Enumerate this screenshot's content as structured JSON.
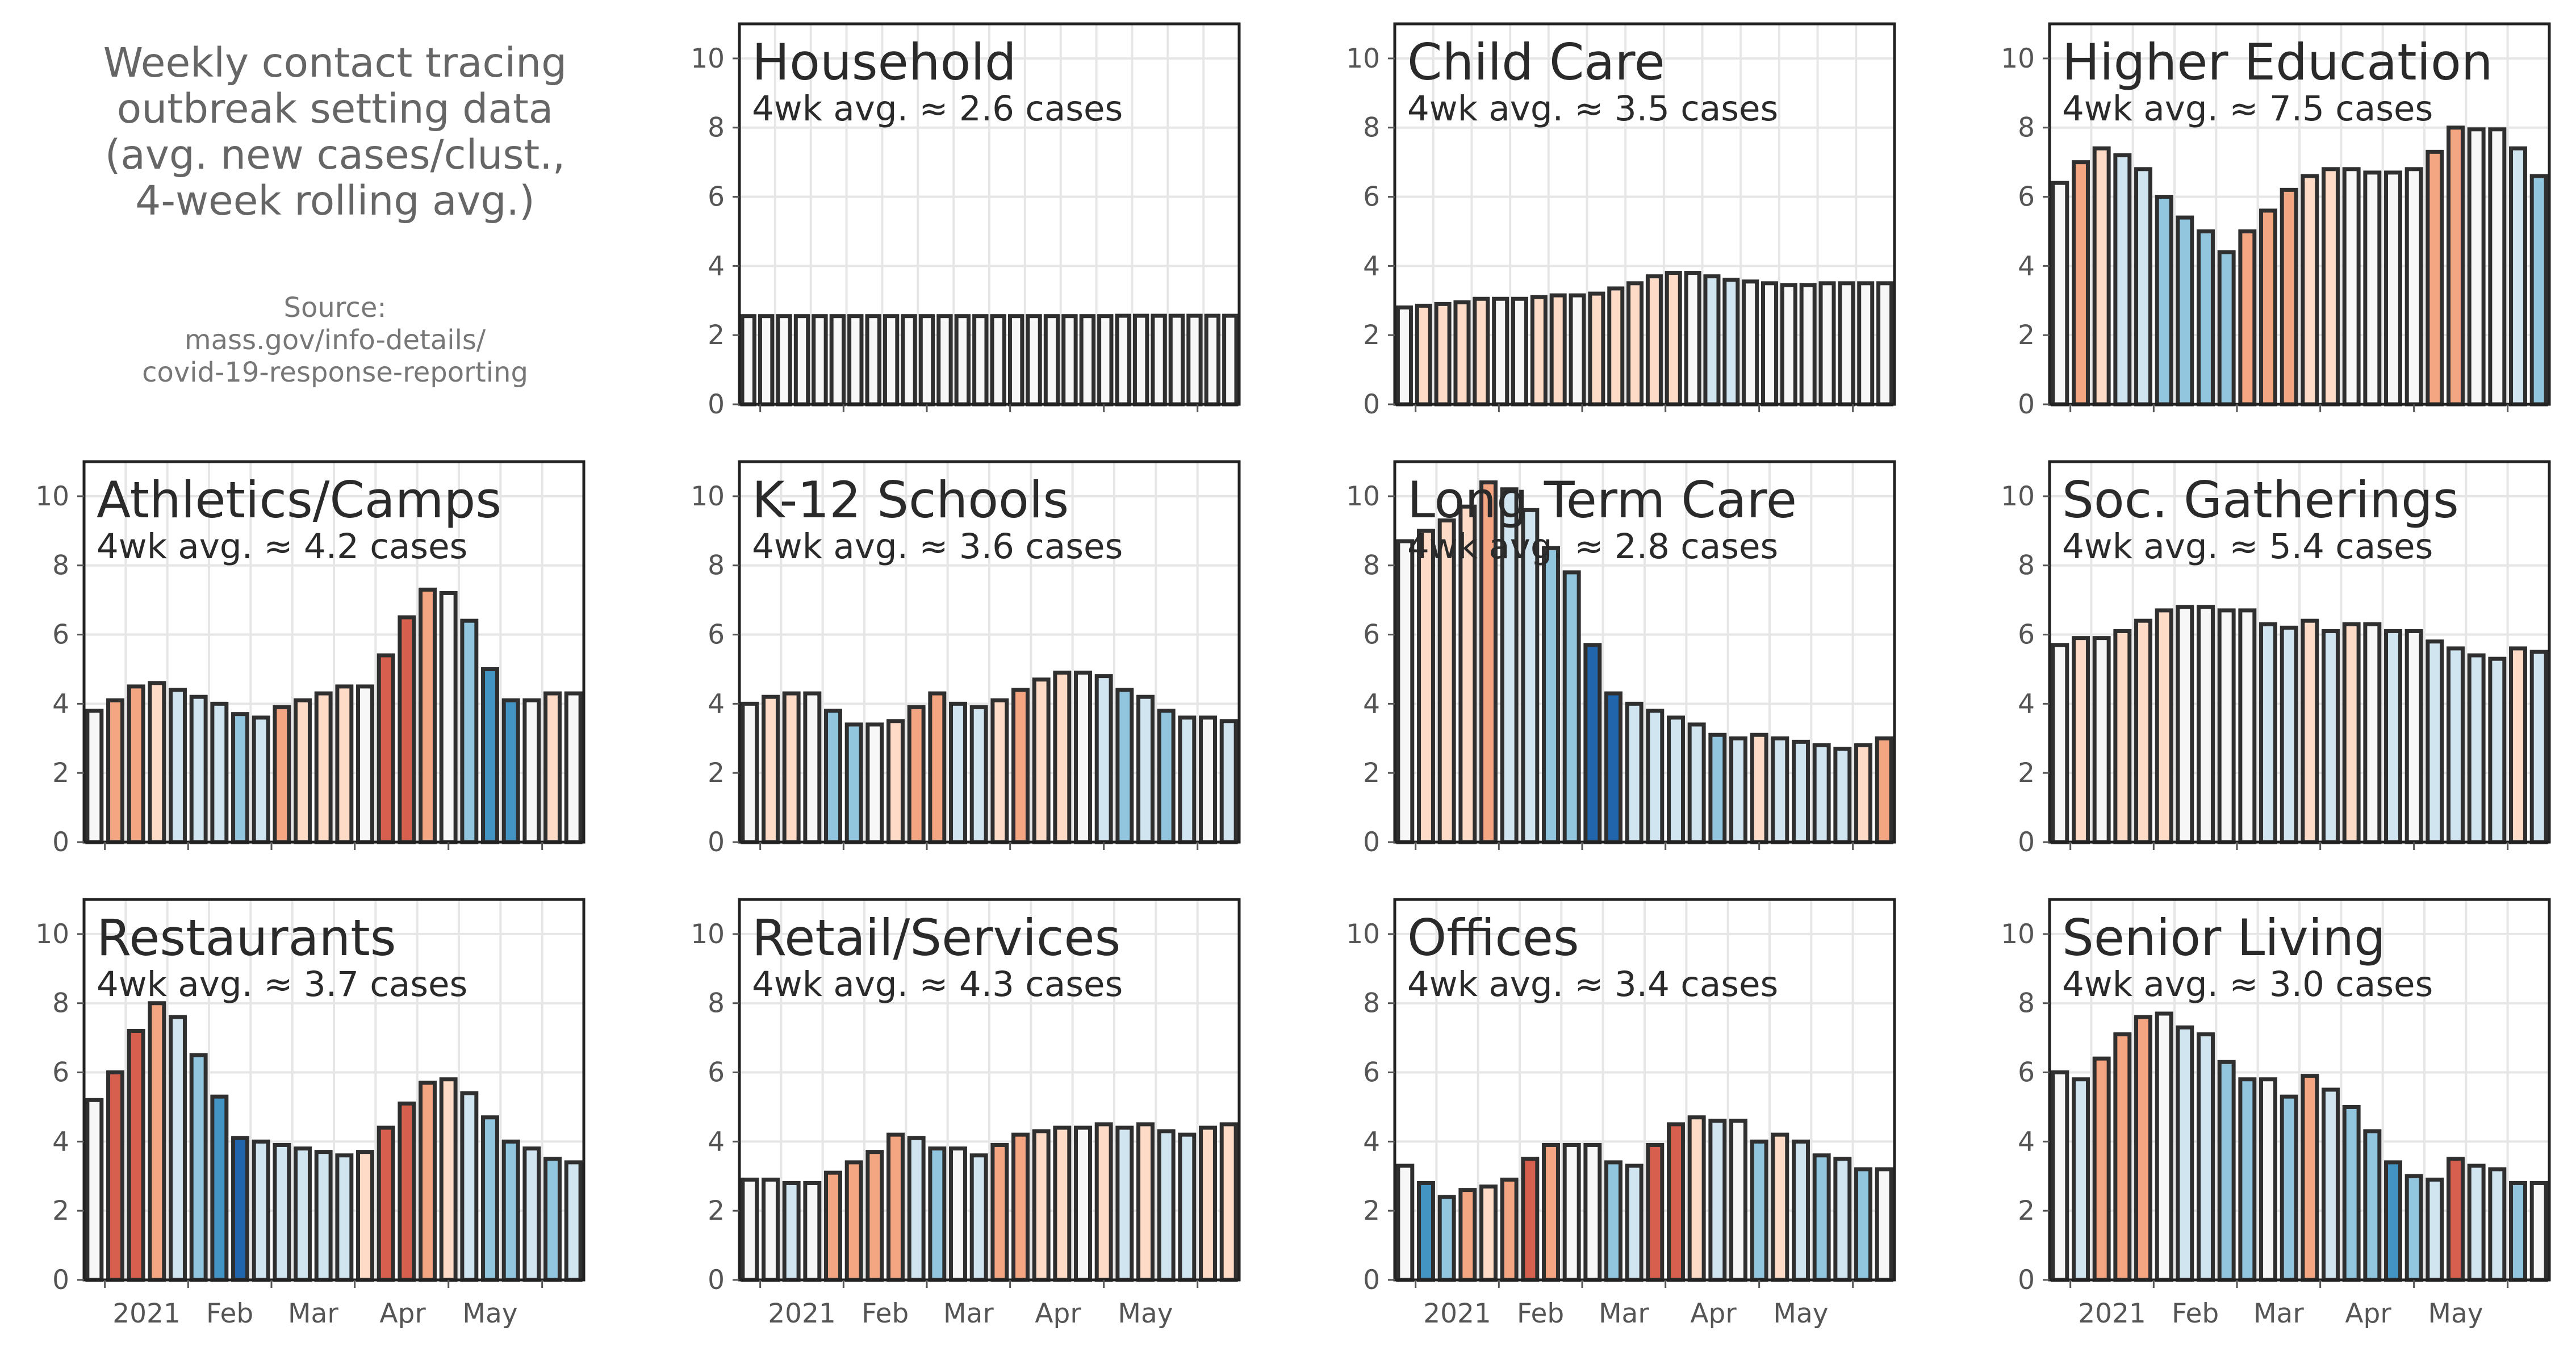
{
  "header": {
    "title": "Weekly contact tracing\noutbreak setting data\n(avg. new cases/clust.,\n4-week rolling avg.)",
    "source": "Source:\nmass.gov/info-details/\ncovid-19-response-reporting"
  },
  "colors": {
    "frame": "#222222",
    "grid": "#e6e6e6",
    "bar_edge": "#2f2f2f",
    "scale_up_strong": "#d6604d",
    "scale_up_mid": "#f4a582",
    "scale_up_light": "#fddbc7",
    "scale_neutral": "#f7f7f7",
    "scale_down_light": "#d1e5f0",
    "scale_down_mid": "#92c5de",
    "scale_down_strong": "#4393c3",
    "scale_down_darkest": "#2166ac"
  },
  "chart_data": [
    {
      "type": "bar",
      "title": "Household",
      "subtitle": "4wk avg. ≈ 2.6 cases",
      "ylim": [
        0,
        11
      ],
      "yticks": [
        0,
        2,
        4,
        6,
        8,
        10
      ],
      "x_tick_labels": [],
      "grid": true,
      "values": [
        2.55,
        2.55,
        2.55,
        2.55,
        2.55,
        2.55,
        2.55,
        2.55,
        2.55,
        2.55,
        2.55,
        2.55,
        2.55,
        2.55,
        2.55,
        2.55,
        2.55,
        2.55,
        2.55,
        2.55,
        2.55,
        2.56,
        2.56,
        2.56,
        2.56,
        2.56,
        2.56,
        2.56
      ]
    },
    {
      "type": "bar",
      "title": "Child Care",
      "subtitle": "4wk avg. ≈ 3.5 cases",
      "ylim": [
        0,
        11
      ],
      "yticks": [
        0,
        2,
        4,
        6,
        8,
        10
      ],
      "x_tick_labels": [],
      "grid": true,
      "values": [
        2.8,
        2.85,
        2.9,
        2.95,
        3.05,
        3.05,
        3.05,
        3.1,
        3.15,
        3.15,
        3.2,
        3.35,
        3.5,
        3.7,
        3.8,
        3.8,
        3.7,
        3.6,
        3.55,
        3.5,
        3.45,
        3.45,
        3.5,
        3.5,
        3.5,
        3.5
      ]
    },
    {
      "type": "bar",
      "title": "Higher Education",
      "subtitle": "4wk avg. ≈ 7.5 cases",
      "ylim": [
        0,
        11
      ],
      "yticks": [
        0,
        2,
        4,
        6,
        8,
        10
      ],
      "x_tick_labels": [],
      "grid": true,
      "values": [
        6.4,
        7.0,
        7.4,
        7.2,
        6.8,
        6.0,
        5.4,
        5.0,
        4.4,
        5.0,
        5.6,
        6.2,
        6.6,
        6.8,
        6.8,
        6.7,
        6.7,
        6.8,
        7.3,
        8.0,
        7.95,
        7.95,
        7.4,
        6.6
      ]
    },
    {
      "type": "bar",
      "title": "Athletics/Camps",
      "subtitle": "4wk avg. ≈ 4.2 cases",
      "ylim": [
        0,
        11
      ],
      "yticks": [
        0,
        2,
        4,
        6,
        8,
        10
      ],
      "x_tick_labels": [],
      "grid": true,
      "values": [
        3.8,
        4.1,
        4.5,
        4.6,
        4.4,
        4.2,
        4.0,
        3.7,
        3.6,
        3.9,
        4.1,
        4.3,
        4.5,
        4.5,
        5.4,
        6.5,
        7.3,
        7.2,
        6.4,
        5.0,
        4.1,
        4.1,
        4.3,
        4.3
      ]
    },
    {
      "type": "bar",
      "title": "K-12 Schools",
      "subtitle": "4wk avg. ≈ 3.6 cases",
      "ylim": [
        0,
        11
      ],
      "yticks": [
        0,
        2,
        4,
        6,
        8,
        10
      ],
      "x_tick_labels": [],
      "grid": true,
      "values": [
        4.0,
        4.2,
        4.3,
        4.3,
        3.8,
        3.4,
        3.4,
        3.5,
        3.9,
        4.3,
        4.0,
        3.9,
        4.1,
        4.4,
        4.7,
        4.9,
        4.9,
        4.8,
        4.4,
        4.2,
        3.8,
        3.6,
        3.6,
        3.5
      ]
    },
    {
      "type": "bar",
      "title": "Long Term Care",
      "subtitle": "4wk avg. ≈ 2.8 cases",
      "ylim": [
        0,
        11
      ],
      "yticks": [
        0,
        2,
        4,
        6,
        8,
        10
      ],
      "x_tick_labels": [],
      "grid": true,
      "values": [
        8.7,
        9.0,
        9.3,
        9.7,
        10.4,
        10.2,
        9.6,
        8.5,
        7.8,
        5.7,
        4.3,
        4.0,
        3.8,
        3.6,
        3.4,
        3.1,
        3.0,
        3.1,
        3.0,
        2.9,
        2.8,
        2.7,
        2.8,
        3.0
      ]
    },
    {
      "type": "bar",
      "title": "Soc. Gatherings",
      "subtitle": "4wk avg. ≈ 5.4 cases",
      "ylim": [
        0,
        11
      ],
      "yticks": [
        0,
        2,
        4,
        6,
        8,
        10
      ],
      "x_tick_labels": [],
      "grid": true,
      "values": [
        5.7,
        5.9,
        5.9,
        6.1,
        6.4,
        6.7,
        6.8,
        6.8,
        6.7,
        6.7,
        6.3,
        6.2,
        6.4,
        6.1,
        6.3,
        6.3,
        6.1,
        6.1,
        5.8,
        5.6,
        5.4,
        5.3,
        5.6,
        5.5
      ]
    },
    {
      "type": "bar",
      "title": "Restaurants",
      "subtitle": "4wk avg. ≈ 3.7 cases",
      "ylim": [
        0,
        11
      ],
      "yticks": [
        0,
        2,
        4,
        6,
        8,
        10
      ],
      "x_tick_labels": [
        "2021",
        "Feb",
        "Mar",
        "Apr",
        "May"
      ],
      "grid": true,
      "values": [
        5.2,
        6.0,
        7.2,
        8.0,
        7.6,
        6.5,
        5.3,
        4.1,
        4.0,
        3.9,
        3.8,
        3.7,
        3.6,
        3.7,
        4.4,
        5.1,
        5.7,
        5.8,
        5.4,
        4.7,
        4.0,
        3.8,
        3.5,
        3.4
      ]
    },
    {
      "type": "bar",
      "title": "Retail/Services",
      "subtitle": "4wk avg. ≈ 4.3 cases",
      "ylim": [
        0,
        11
      ],
      "yticks": [
        0,
        2,
        4,
        6,
        8,
        10
      ],
      "x_tick_labels": [
        "2021",
        "Feb",
        "Mar",
        "Apr",
        "May"
      ],
      "grid": true,
      "values": [
        2.9,
        2.9,
        2.8,
        2.8,
        3.1,
        3.4,
        3.7,
        4.2,
        4.1,
        3.8,
        3.8,
        3.6,
        3.9,
        4.2,
        4.3,
        4.4,
        4.4,
        4.5,
        4.4,
        4.5,
        4.3,
        4.2,
        4.4,
        4.5
      ]
    },
    {
      "type": "bar",
      "title": "Offices",
      "subtitle": "4wk avg. ≈ 3.4 cases",
      "ylim": [
        0,
        11
      ],
      "yticks": [
        0,
        2,
        4,
        6,
        8,
        10
      ],
      "x_tick_labels": [
        "2021",
        "Feb",
        "Mar",
        "Apr",
        "May"
      ],
      "grid": true,
      "values": [
        3.3,
        2.8,
        2.4,
        2.6,
        2.7,
        2.9,
        3.5,
        3.9,
        3.9,
        3.9,
        3.4,
        3.3,
        3.9,
        4.5,
        4.7,
        4.6,
        4.6,
        4.0,
        4.2,
        4.0,
        3.6,
        3.5,
        3.2,
        3.2
      ]
    },
    {
      "type": "bar",
      "title": "Senior Living",
      "subtitle": "4wk avg. ≈ 3.0 cases",
      "ylim": [
        0,
        11
      ],
      "yticks": [
        0,
        2,
        4,
        6,
        8,
        10
      ],
      "x_tick_labels": [
        "2021",
        "Feb",
        "Mar",
        "Apr",
        "May"
      ],
      "grid": true,
      "values": [
        6.0,
        5.8,
        6.4,
        7.1,
        7.6,
        7.7,
        7.3,
        7.1,
        6.3,
        5.8,
        5.8,
        5.3,
        5.9,
        5.5,
        5.0,
        4.3,
        3.4,
        3.0,
        2.9,
        3.5,
        3.3,
        3.2,
        2.8,
        2.8
      ]
    }
  ]
}
